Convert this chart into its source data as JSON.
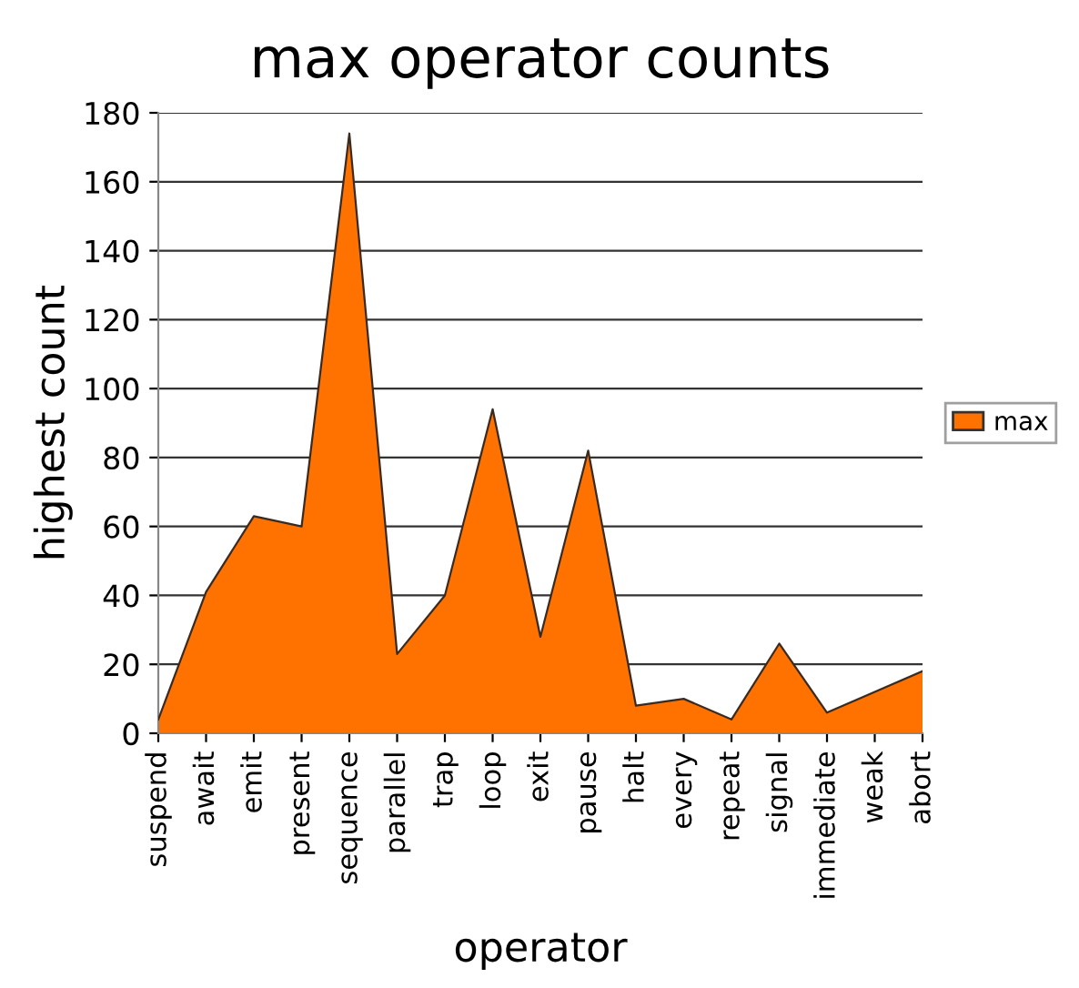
{
  "chart_data": {
    "type": "area",
    "title": "max operator counts",
    "xlabel": "operator",
    "ylabel": "highest count",
    "categories": [
      "suspend",
      "await",
      "emit",
      "present",
      "sequence",
      "parallel",
      "trap",
      "loop",
      "exit",
      "pause",
      "halt",
      "every",
      "repeat",
      "signal",
      "immediate",
      "weak",
      "abort"
    ],
    "series": [
      {
        "name": "max",
        "color": "#ff7200",
        "values": [
          4,
          41,
          63,
          60,
          174,
          23,
          40,
          94,
          28,
          82,
          8,
          10,
          4,
          26,
          6,
          12,
          18
        ]
      }
    ],
    "ylim": [
      0,
      180
    ],
    "yticks": [
      0,
      20,
      40,
      60,
      80,
      100,
      120,
      140,
      160,
      180
    ],
    "grid": "y",
    "legend": "right"
  }
}
